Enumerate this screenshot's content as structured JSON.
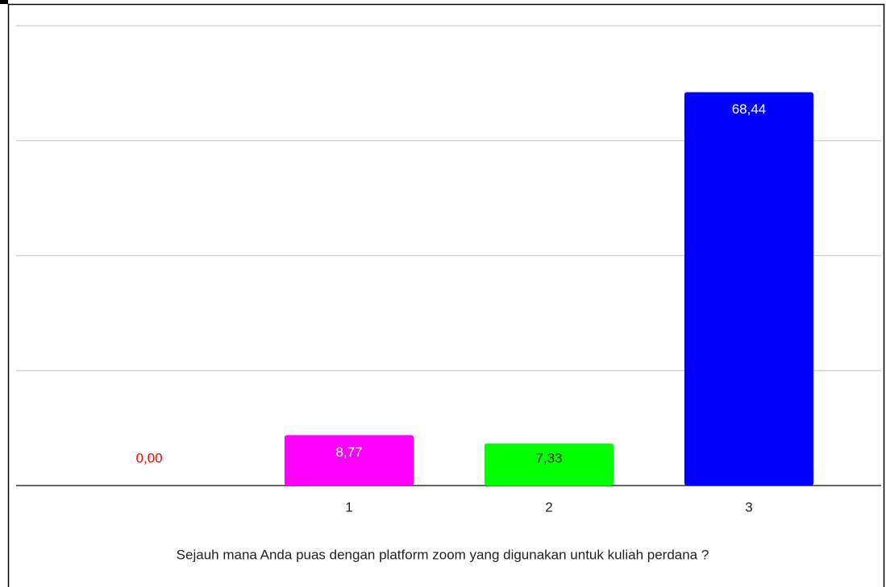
{
  "chart_data": {
    "type": "bar",
    "categories": [
      null,
      "1",
      "2",
      "3"
    ],
    "values": [
      0,
      8.77,
      7.33,
      68.44
    ],
    "value_labels": [
      "0,00",
      "8,77",
      "7,33",
      "68,44"
    ],
    "colors": [
      "#ff0000",
      "#ff00ff",
      "#00ff00",
      "#0000ff"
    ],
    "value_label_colors": [
      "#ff0000",
      "#ffffff",
      "#222222",
      "#ffffff"
    ],
    "x_label": "Sejauh mana Anda puas dengan platform zoom yang digunakan untuk kuliah perdana ?",
    "ylim": [
      0,
      80
    ],
    "yticks": [
      0,
      20,
      40,
      60,
      80
    ],
    "grid": true
  }
}
